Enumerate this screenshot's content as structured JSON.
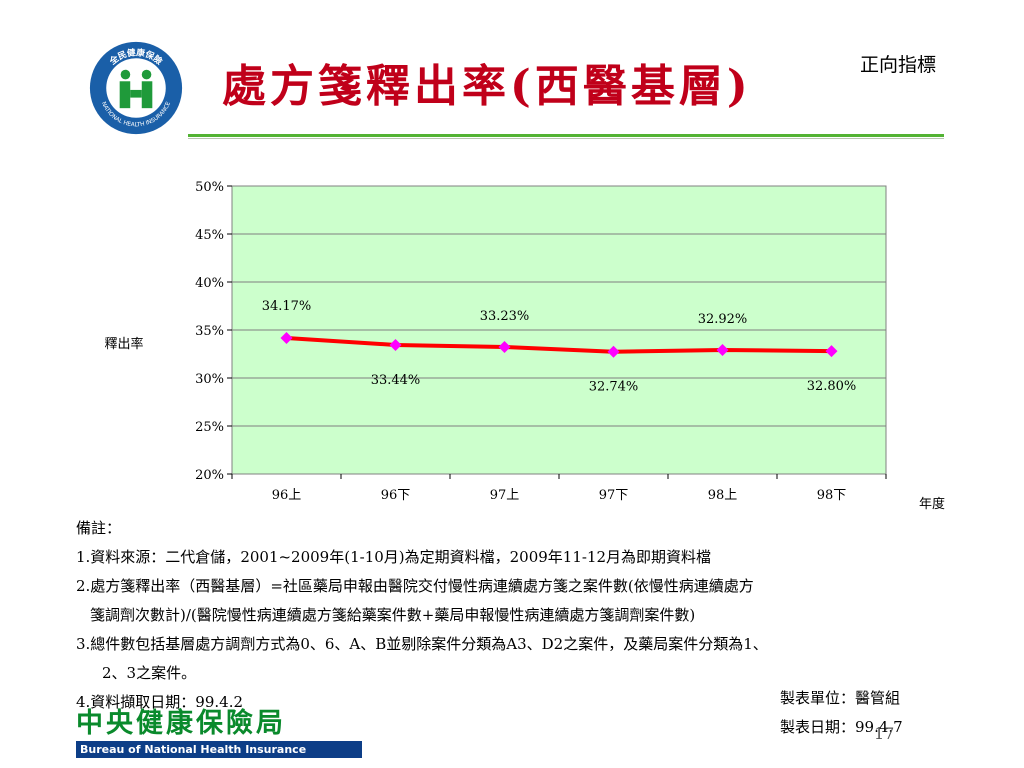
{
  "header": {
    "title": "處方箋釋出率(西醫基層)",
    "tag": "正向指標",
    "logo_text": "全民健康保險",
    "logo_subtext": "NATIONAL HEALTH INSURANCE"
  },
  "chart_data": {
    "type": "line",
    "categories": [
      "96上",
      "96下",
      "97上",
      "97下",
      "98上",
      "98下"
    ],
    "series": [
      {
        "values": [
          34.17,
          33.44,
          33.23,
          32.74,
          32.92,
          32.8
        ]
      }
    ],
    "data_labels": [
      "34.17%",
      "33.44%",
      "33.23%",
      "32.74%",
      "32.92%",
      "32.80%"
    ],
    "ylabel": "釋出率",
    "xlabel": "年度",
    "ylim": [
      20,
      50
    ],
    "yticks": [
      20,
      25,
      30,
      35,
      40,
      45,
      50
    ],
    "ytick_labels": [
      "20%",
      "25%",
      "30%",
      "35%",
      "40%",
      "45%",
      "50%"
    ],
    "grid": true,
    "colors": {
      "plot_bg": "#ccffcc",
      "line": "#ff0000",
      "marker": "#ff00ff",
      "grid": "#7f7f7f"
    }
  },
  "notes": {
    "heading": "備註：",
    "line1": "1.資料來源：二代倉儲，2001~2009年(1-10月)為定期資料檔，2009年11-12月為即期資料檔",
    "line2a": "2.處方箋釋出率（西醫基層）=社區藥局申報由醫院交付慢性病連續處方箋之案件數(依慢性病連續處方",
    "line2b": "箋調劑次數計)/(醫院慢性病連續處方箋給藥案件數+藥局申報慢性病連續處方箋調劑案件數)",
    "line3a": "3.總件數包括基層處方調劑方式為0、6、A、B並剔除案件分類為A3、D2之案件，及藥局案件分類為1、",
    "line3b": "2、3之案件。",
    "line4": "4.資料擷取日期：99.4.2"
  },
  "footer": {
    "maker_unit": "製表單位：醫管組",
    "maker_date": "製表日期：99.4.7",
    "page_number": "17",
    "bureau_cn": "中央健康保險局",
    "bureau_en": "Bureau of National Health Insurance"
  }
}
